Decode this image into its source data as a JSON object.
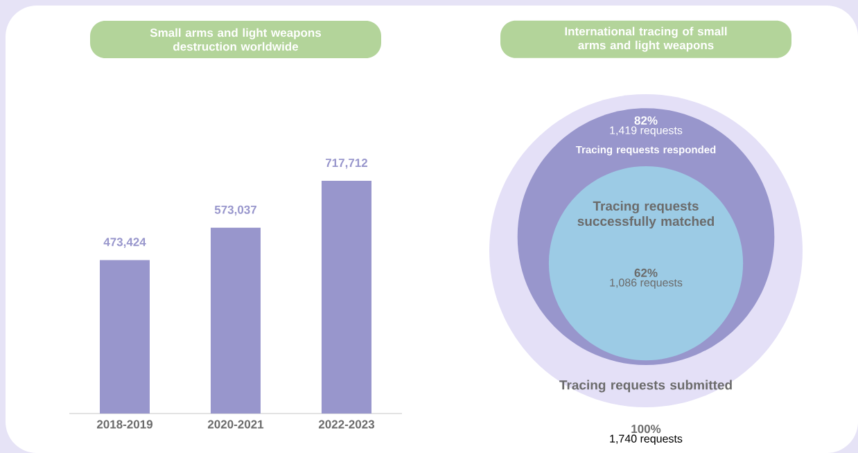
{
  "chart_data": [
    {
      "type": "bar",
      "title": "Small arms and light weapons destruction worldwide",
      "categories": [
        "2018-2019",
        "2020-2021",
        "2022-2023"
      ],
      "values": [
        473424,
        573037,
        717712
      ],
      "color": "#9896cc",
      "value_labels": [
        "473,424",
        "573,037",
        "717,712"
      ]
    },
    {
      "type": "other",
      "title": "International tracing of small arms and light weapons",
      "categories": [
        "Tracing requests submitted",
        "Tracing requests responded",
        "Tracing requests successfully matched"
      ],
      "values": [
        100,
        82,
        62
      ],
      "colors": [
        "#e4e0f7",
        "#9896cc",
        "#9ccbe5"
      ],
      "value_labels": [
        "100%",
        "82%",
        "62%"
      ],
      "annotations": [
        "1,740 requests",
        "1,419 requests",
        "1,086 requests"
      ]
    }
  ]
}
